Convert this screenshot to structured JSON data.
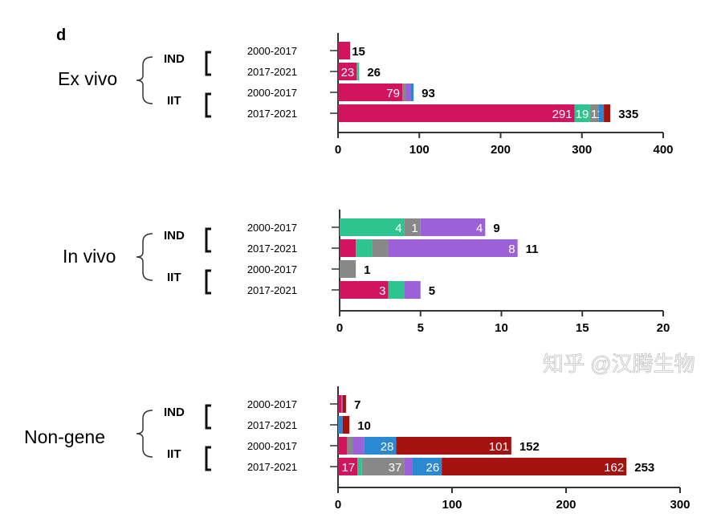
{
  "chart_data": {
    "type": "bar",
    "orientation": "horizontal-stacked",
    "panel_letter": "d",
    "colors": {
      "magenta": "#d2145f",
      "green": "#2ec490",
      "gray": "#888888",
      "purple": "#9c60d8",
      "blue": "#2b88d2",
      "darkred": "#a3120f"
    },
    "panels": [
      {
        "group": "Ex vivo",
        "xlim": [
          0,
          400
        ],
        "ticks": [
          "0",
          "100",
          "200",
          "300",
          "400"
        ],
        "tick_values": [
          0,
          100,
          200,
          300,
          400
        ],
        "subgroups": [
          {
            "label": "IND",
            "rows": [
              {
                "period": "2000-2017",
                "total": "15",
                "segments": [
                  {
                    "c": "magenta",
                    "v": 15
                  }
                ]
              },
              {
                "period": "2017-2021",
                "total": "26",
                "segments": [
                  {
                    "c": "magenta",
                    "v": 23,
                    "label": "23"
                  },
                  {
                    "c": "gray",
                    "v": 1
                  },
                  {
                    "c": "green",
                    "v": 2
                  }
                ]
              }
            ]
          },
          {
            "label": "IIT",
            "rows": [
              {
                "period": "2000-2017",
                "total": "93",
                "segments": [
                  {
                    "c": "magenta",
                    "v": 79,
                    "label": "79"
                  },
                  {
                    "c": "gray",
                    "v": 4
                  },
                  {
                    "c": "purple",
                    "v": 6
                  },
                  {
                    "c": "blue",
                    "v": 4
                  }
                ]
              },
              {
                "period": "2017-2021",
                "total": "335",
                "segments": [
                  {
                    "c": "magenta",
                    "v": 291,
                    "label": "291"
                  },
                  {
                    "c": "green",
                    "v": 19,
                    "label": "19"
                  },
                  {
                    "c": "gray",
                    "v": 11,
                    "label": "11"
                  },
                  {
                    "c": "blue",
                    "v": 6
                  },
                  {
                    "c": "darkred",
                    "v": 8
                  }
                ]
              }
            ]
          }
        ]
      },
      {
        "group": "In vivo",
        "xlim": [
          0,
          20
        ],
        "ticks": [
          "0",
          "5",
          "10",
          "15",
          "20"
        ],
        "tick_values": [
          0,
          5,
          10,
          15,
          20
        ],
        "subgroups": [
          {
            "label": "IND",
            "rows": [
              {
                "period": "2000-2017",
                "total": "9",
                "segments": [
                  {
                    "c": "green",
                    "v": 4,
                    "label": "4"
                  },
                  {
                    "c": "gray",
                    "v": 1,
                    "label": "1"
                  },
                  {
                    "c": "purple",
                    "v": 4,
                    "label": "4"
                  }
                ]
              },
              {
                "period": "2017-2021",
                "total": "11",
                "segments": [
                  {
                    "c": "magenta",
                    "v": 1
                  },
                  {
                    "c": "green",
                    "v": 1
                  },
                  {
                    "c": "gray",
                    "v": 1
                  },
                  {
                    "c": "purple",
                    "v": 8,
                    "label": "8"
                  }
                ]
              }
            ]
          },
          {
            "label": "IIT",
            "rows": [
              {
                "period": "2000-2017",
                "total": "1",
                "segments": [
                  {
                    "c": "gray",
                    "v": 1
                  }
                ]
              },
              {
                "period": "2017-2021",
                "total": "5",
                "segments": [
                  {
                    "c": "magenta",
                    "v": 3,
                    "label": "3"
                  },
                  {
                    "c": "green",
                    "v": 1
                  },
                  {
                    "c": "purple",
                    "v": 1
                  }
                ]
              }
            ]
          }
        ]
      },
      {
        "group": "Non-gene",
        "xlim": [
          0,
          300
        ],
        "ticks": [
          "0",
          "100",
          "200",
          "300"
        ],
        "tick_values": [
          0,
          100,
          200,
          300
        ],
        "subgroups": [
          {
            "label": "IND",
            "rows": [
              {
                "period": "2000-2017",
                "total": "7",
                "segments": [
                  {
                    "c": "magenta",
                    "v": 3
                  },
                  {
                    "c": "purple",
                    "v": 1
                  },
                  {
                    "c": "darkred",
                    "v": 3
                  }
                ]
              },
              {
                "period": "2017-2021",
                "total": "10",
                "segments": [
                  {
                    "c": "blue",
                    "v": 4
                  },
                  {
                    "c": "darkred",
                    "v": 6
                  }
                ]
              }
            ]
          },
          {
            "label": "IIT",
            "rows": [
              {
                "period": "2000-2017",
                "total": "152",
                "segments": [
                  {
                    "c": "magenta",
                    "v": 8
                  },
                  {
                    "c": "gray",
                    "v": 5
                  },
                  {
                    "c": "purple",
                    "v": 10
                  },
                  {
                    "c": "blue",
                    "v": 28,
                    "label": "28"
                  },
                  {
                    "c": "darkred",
                    "v": 101,
                    "label": "101"
                  }
                ]
              },
              {
                "period": "2017-2021",
                "total": "253",
                "segments": [
                  {
                    "c": "magenta",
                    "v": 17,
                    "label": "17"
                  },
                  {
                    "c": "green",
                    "v": 4
                  },
                  {
                    "c": "gray",
                    "v": 37,
                    "label": "37"
                  },
                  {
                    "c": "purple",
                    "v": 7
                  },
                  {
                    "c": "blue",
                    "v": 26,
                    "label": "26"
                  },
                  {
                    "c": "darkred",
                    "v": 162,
                    "label": "162"
                  }
                ]
              }
            ]
          }
        ]
      }
    ]
  },
  "watermark": "知乎 @汉腾生物"
}
